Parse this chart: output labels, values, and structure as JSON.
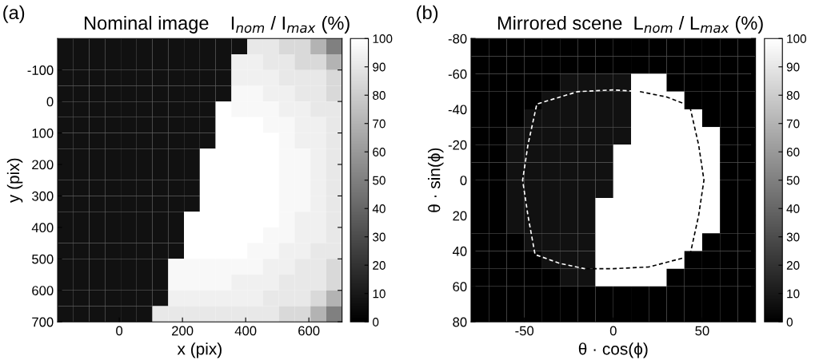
{
  "chart_data": [
    {
      "type": "heatmap",
      "title": "Nominal image    I$_{nom}$ / I$_{max}$ (%)",
      "xlabel": "x (pix)",
      "ylabel": "y (pix)",
      "annotations": [
        "(a)"
      ],
      "x": [
        -170,
        -120,
        -70,
        -20,
        30,
        80,
        130,
        180,
        230,
        280,
        330,
        380,
        430,
        480,
        530,
        580,
        630,
        680
      ],
      "y": [
        -175,
        -125,
        -75,
        -25,
        25,
        75,
        125,
        175,
        225,
        275,
        325,
        375,
        425,
        475,
        525,
        575,
        625,
        675
      ],
      "xlim": [
        -195,
        705
      ],
      "ylim": [
        700,
        -200
      ],
      "xticks": [
        0,
        200,
        400,
        600
      ],
      "yticks": [
        -100,
        0,
        100,
        200,
        300,
        400,
        500,
        600,
        700
      ],
      "clim": [
        0,
        100
      ],
      "cticks": [
        0,
        10,
        20,
        30,
        40,
        50,
        60,
        70,
        80,
        90,
        100
      ],
      "cells": [
        [
          7,
          7,
          7,
          7,
          7,
          7,
          7,
          7,
          7,
          7,
          7,
          7,
          91,
          91,
          85,
          85,
          70,
          50
        ],
        [
          7,
          7,
          7,
          7,
          7,
          7,
          7,
          7,
          7,
          7,
          7,
          94,
          94,
          91,
          91,
          85,
          85,
          70
        ],
        [
          7,
          7,
          7,
          7,
          7,
          7,
          7,
          7,
          7,
          7,
          7,
          94,
          94,
          94,
          91,
          91,
          91,
          85
        ],
        [
          7,
          7,
          7,
          7,
          7,
          7,
          7,
          7,
          7,
          7,
          7,
          97,
          97,
          94,
          94,
          91,
          91,
          85
        ],
        [
          7,
          7,
          7,
          7,
          7,
          7,
          7,
          7,
          7,
          7,
          100,
          97,
          97,
          97,
          94,
          94,
          91,
          91
        ],
        [
          7,
          7,
          7,
          7,
          7,
          7,
          7,
          7,
          7,
          7,
          100,
          100,
          100,
          97,
          97,
          94,
          94,
          91
        ],
        [
          7,
          7,
          7,
          7,
          7,
          7,
          7,
          7,
          7,
          7,
          100,
          100,
          100,
          100,
          97,
          94,
          94,
          91
        ],
        [
          7,
          7,
          7,
          7,
          7,
          7,
          7,
          7,
          7,
          100,
          100,
          100,
          100,
          100,
          97,
          97,
          94,
          91
        ],
        [
          7,
          7,
          7,
          7,
          7,
          7,
          7,
          7,
          7,
          100,
          100,
          100,
          100,
          100,
          97,
          97,
          94,
          91
        ],
        [
          7,
          7,
          7,
          7,
          7,
          7,
          7,
          7,
          7,
          100,
          100,
          100,
          100,
          100,
          97,
          97,
          94,
          91
        ],
        [
          7,
          7,
          7,
          7,
          7,
          7,
          7,
          7,
          7,
          100,
          100,
          100,
          100,
          100,
          97,
          97,
          94,
          91
        ],
        [
          7,
          7,
          7,
          7,
          7,
          7,
          7,
          7,
          100,
          100,
          100,
          100,
          100,
          100,
          97,
          94,
          94,
          91
        ],
        [
          7,
          7,
          7,
          7,
          7,
          7,
          7,
          7,
          100,
          100,
          100,
          100,
          100,
          97,
          97,
          94,
          94,
          91
        ],
        [
          7,
          7,
          7,
          7,
          7,
          7,
          7,
          7,
          100,
          100,
          100,
          100,
          97,
          97,
          94,
          94,
          91,
          91
        ],
        [
          7,
          7,
          7,
          7,
          7,
          7,
          7,
          97,
          97,
          97,
          97,
          97,
          97,
          94,
          94,
          91,
          91,
          85
        ],
        [
          7,
          7,
          7,
          7,
          7,
          7,
          7,
          97,
          97,
          97,
          97,
          94,
          94,
          94,
          91,
          91,
          91,
          85
        ],
        [
          7,
          7,
          7,
          7,
          7,
          7,
          7,
          94,
          94,
          94,
          94,
          94,
          94,
          91,
          91,
          91,
          85,
          70
        ],
        [
          7,
          7,
          7,
          7,
          7,
          7,
          91,
          91,
          91,
          91,
          91,
          91,
          91,
          91,
          85,
          85,
          70,
          50
        ]
      ]
    },
    {
      "type": "heatmap",
      "title": "Mirrored scene  L$_{nom}$ / L$_{max}$ (%)",
      "xlabel": "θ · cos(ϕ)",
      "ylabel": "θ · sin(ϕ)",
      "annotations": [
        "(b)"
      ],
      "x": [
        -75,
        -65,
        -55,
        -45,
        -35,
        -25,
        -15,
        -5,
        5,
        15,
        25,
        35,
        45,
        55,
        65,
        75
      ],
      "y": [
        -75,
        -65,
        -55,
        -45,
        -35,
        -25,
        -15,
        -5,
        5,
        15,
        25,
        35,
        45,
        55,
        65,
        75
      ],
      "xlim": [
        -80,
        80
      ],
      "ylim": [
        80,
        -80
      ],
      "xticks": [
        -50,
        0,
        50
      ],
      "yticks": [
        -80,
        -60,
        -40,
        -20,
        0,
        20,
        40,
        60,
        80
      ],
      "clim": [
        0,
        100
      ],
      "cticks": [
        0,
        10,
        20,
        30,
        40,
        50,
        60,
        70,
        80,
        90,
        100
      ],
      "cells": [
        [
          0,
          0,
          0,
          0,
          0,
          0,
          0,
          0,
          0,
          0,
          0,
          0,
          0,
          0,
          0,
          0
        ],
        [
          0,
          0,
          0,
          0,
          0,
          0,
          0,
          0,
          0,
          0,
          0,
          0,
          0,
          0,
          0,
          0
        ],
        [
          0,
          0,
          0,
          0,
          0,
          7,
          7,
          7,
          7,
          100,
          100,
          0,
          0,
          0,
          0,
          0
        ],
        [
          0,
          0,
          0,
          0,
          7,
          7,
          7,
          7,
          7,
          100,
          100,
          100,
          0,
          0,
          0,
          0
        ],
        [
          0,
          0,
          0,
          7,
          7,
          7,
          7,
          7,
          7,
          100,
          100,
          100,
          100,
          0,
          0,
          0
        ],
        [
          0,
          0,
          7,
          7,
          7,
          7,
          7,
          7,
          7,
          100,
          100,
          100,
          100,
          100,
          0,
          0
        ],
        [
          0,
          0,
          7,
          7,
          7,
          7,
          7,
          7,
          100,
          100,
          100,
          100,
          100,
          100,
          0,
          0
        ],
        [
          0,
          0,
          7,
          7,
          7,
          7,
          7,
          7,
          100,
          100,
          100,
          100,
          100,
          100,
          0,
          0
        ],
        [
          0,
          0,
          7,
          7,
          7,
          7,
          7,
          7,
          100,
          100,
          100,
          100,
          100,
          100,
          0,
          0
        ],
        [
          0,
          0,
          7,
          7,
          7,
          7,
          7,
          100,
          100,
          100,
          100,
          100,
          100,
          100,
          0,
          0
        ],
        [
          0,
          0,
          7,
          7,
          7,
          7,
          7,
          100,
          100,
          100,
          100,
          100,
          100,
          100,
          0,
          0
        ],
        [
          0,
          0,
          0,
          7,
          7,
          7,
          7,
          100,
          100,
          100,
          100,
          100,
          100,
          0,
          0,
          0
        ],
        [
          0,
          0,
          0,
          0,
          7,
          7,
          7,
          100,
          100,
          100,
          100,
          100,
          0,
          0,
          0,
          0
        ],
        [
          0,
          0,
          0,
          0,
          0,
          7,
          7,
          100,
          100,
          100,
          100,
          0,
          0,
          0,
          0,
          0
        ],
        [
          0,
          0,
          0,
          0,
          0,
          0,
          0,
          0,
          0,
          0,
          0,
          0,
          0,
          0,
          0,
          0
        ],
        [
          0,
          0,
          0,
          0,
          0,
          0,
          0,
          0,
          0,
          0,
          0,
          0,
          0,
          0,
          0,
          0
        ]
      ],
      "series": [
        {
          "type": "line",
          "color": "#ffffff",
          "line_style": "dashed",
          "x": [
            15,
            0,
            -20,
            -43,
            -48,
            -51,
            -48,
            -44,
            -30,
            -16
          ],
          "values": [
            -50,
            -51,
            -50,
            -43,
            -20,
            0,
            20,
            42,
            47,
            50
          ]
        },
        {
          "type": "line",
          "color": "#000000",
          "line_style": "dashed",
          "x": [
            15,
            30,
            43,
            48,
            51,
            48,
            43,
            20,
            0,
            -16
          ],
          "values": [
            -50,
            -47,
            -42,
            -20,
            0,
            20,
            43,
            49,
            50,
            50
          ]
        }
      ]
    }
  ]
}
